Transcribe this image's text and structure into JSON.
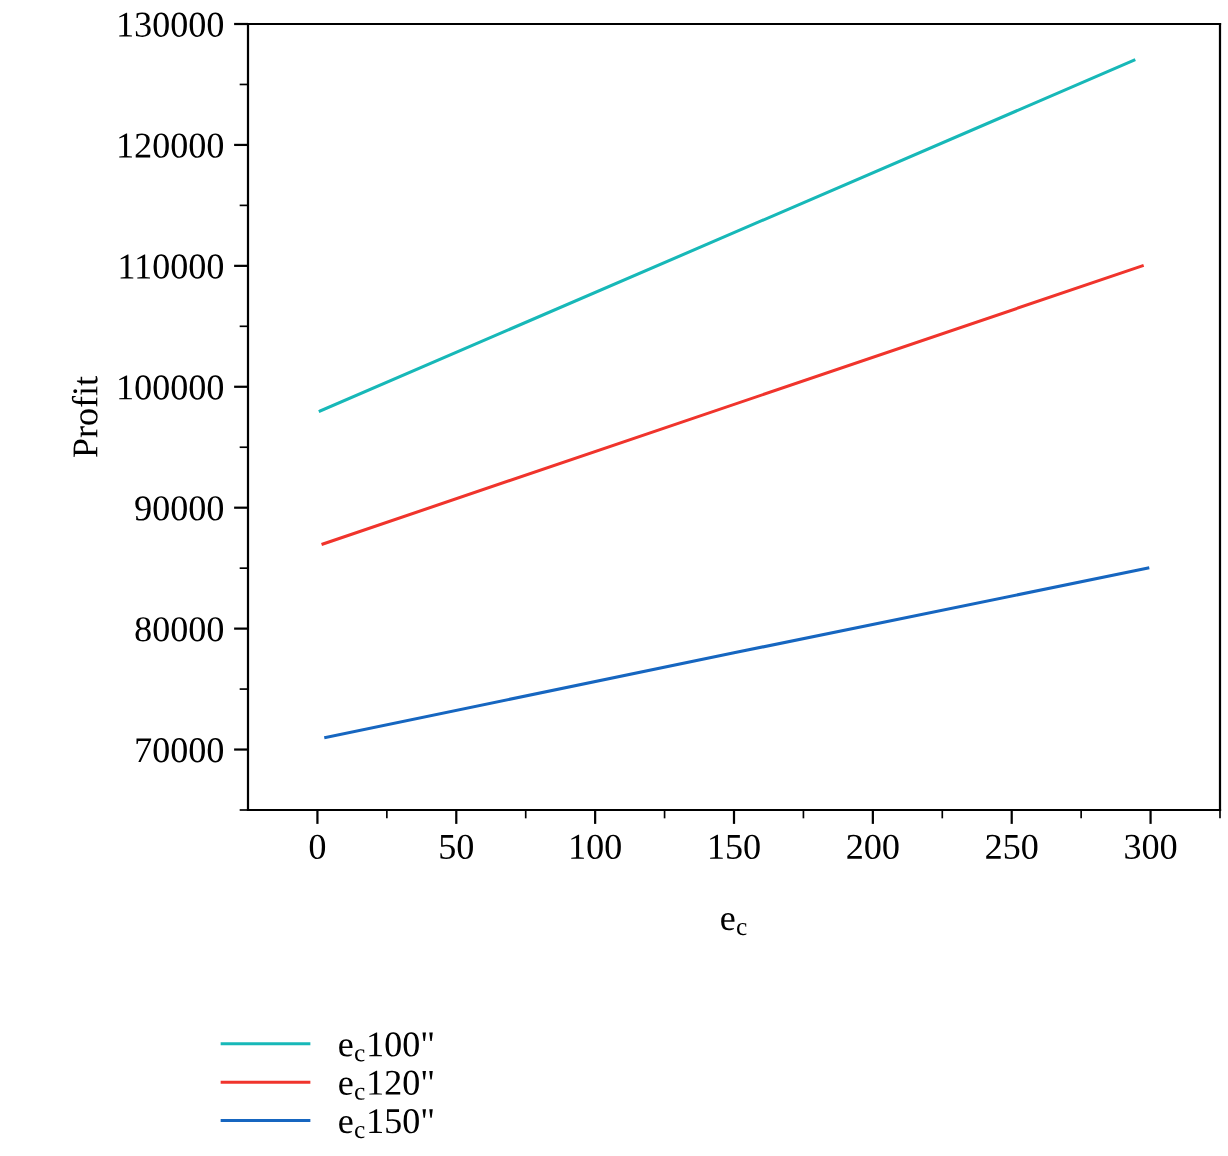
{
  "chart_data": {
    "type": "line",
    "xlabel": "e$_{c}$",
    "ylabel": "Profit",
    "series": [
      {
        "name": "e$_{c}$100\"",
        "color": "#17b8b8",
        "x": [
          1,
          294
        ],
        "values": [
          98000,
          127000
        ]
      },
      {
        "name": "e$_{c}$120\"",
        "color": "#f0342c",
        "x": [
          2,
          297
        ],
        "values": [
          87000,
          110000
        ]
      },
      {
        "name": "e$_{c}$150\"",
        "color": "#1666c0",
        "x": [
          3,
          150,
          299
        ],
        "values": [
          71000,
          78000,
          85000
        ]
      }
    ],
    "xlim": [
      -25,
      325
    ],
    "ylim": [
      65000,
      130000
    ],
    "xticks": [
      0,
      {
        "value": 25,
        "label": null
      },
      50,
      {
        "value": 75,
        "label": null
      },
      100,
      {
        "value": 125,
        "label": null
      },
      150,
      {
        "value": 175,
        "label": null
      },
      200,
      {
        "value": 225,
        "label": null
      },
      250,
      {
        "value": 275,
        "label": null
      },
      300,
      {
        "value": 325,
        "label": null
      }
    ],
    "yticks": [
      {
        "value": 65000,
        "label": null
      },
      70000,
      {
        "value": 75000,
        "label": null
      },
      80000,
      {
        "value": 85000,
        "label": null
      },
      90000,
      {
        "value": 95000,
        "label": null
      },
      100000,
      {
        "value": 105000,
        "label": null
      },
      110000,
      {
        "value": 115000,
        "label": null
      },
      120000,
      {
        "value": 125000,
        "label": null
      },
      130000
    ],
    "legend": "bottom left",
    "grid": false,
    "marker": "none",
    "line_style": "solid"
  }
}
